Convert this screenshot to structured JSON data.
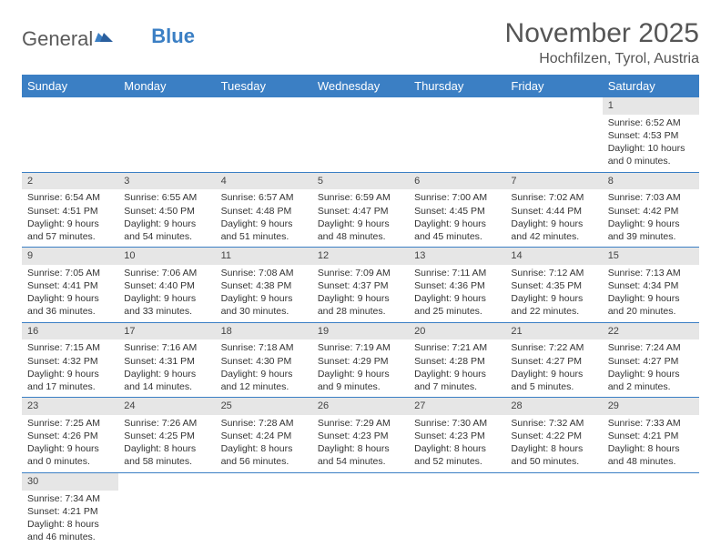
{
  "logo": {
    "text1": "General",
    "text2": "Blue"
  },
  "title": "November 2025",
  "location": "Hochfilzen, Tyrol, Austria",
  "colors": {
    "header_bg": "#3b7fc4",
    "header_text": "#ffffff",
    "daynum_bg": "#e6e6e6",
    "row_border": "#3b7fc4",
    "body_text": "#333333",
    "title_text": "#555555"
  },
  "weekdays": [
    "Sunday",
    "Monday",
    "Tuesday",
    "Wednesday",
    "Thursday",
    "Friday",
    "Saturday"
  ],
  "weeks": [
    [
      {
        "n": "",
        "sunrise": "",
        "sunset": "",
        "daylight": ""
      },
      {
        "n": "",
        "sunrise": "",
        "sunset": "",
        "daylight": ""
      },
      {
        "n": "",
        "sunrise": "",
        "sunset": "",
        "daylight": ""
      },
      {
        "n": "",
        "sunrise": "",
        "sunset": "",
        "daylight": ""
      },
      {
        "n": "",
        "sunrise": "",
        "sunset": "",
        "daylight": ""
      },
      {
        "n": "",
        "sunrise": "",
        "sunset": "",
        "daylight": ""
      },
      {
        "n": "1",
        "sunrise": "Sunrise: 6:52 AM",
        "sunset": "Sunset: 4:53 PM",
        "daylight": "Daylight: 10 hours and 0 minutes."
      }
    ],
    [
      {
        "n": "2",
        "sunrise": "Sunrise: 6:54 AM",
        "sunset": "Sunset: 4:51 PM",
        "daylight": "Daylight: 9 hours and 57 minutes."
      },
      {
        "n": "3",
        "sunrise": "Sunrise: 6:55 AM",
        "sunset": "Sunset: 4:50 PM",
        "daylight": "Daylight: 9 hours and 54 minutes."
      },
      {
        "n": "4",
        "sunrise": "Sunrise: 6:57 AM",
        "sunset": "Sunset: 4:48 PM",
        "daylight": "Daylight: 9 hours and 51 minutes."
      },
      {
        "n": "5",
        "sunrise": "Sunrise: 6:59 AM",
        "sunset": "Sunset: 4:47 PM",
        "daylight": "Daylight: 9 hours and 48 minutes."
      },
      {
        "n": "6",
        "sunrise": "Sunrise: 7:00 AM",
        "sunset": "Sunset: 4:45 PM",
        "daylight": "Daylight: 9 hours and 45 minutes."
      },
      {
        "n": "7",
        "sunrise": "Sunrise: 7:02 AM",
        "sunset": "Sunset: 4:44 PM",
        "daylight": "Daylight: 9 hours and 42 minutes."
      },
      {
        "n": "8",
        "sunrise": "Sunrise: 7:03 AM",
        "sunset": "Sunset: 4:42 PM",
        "daylight": "Daylight: 9 hours and 39 minutes."
      }
    ],
    [
      {
        "n": "9",
        "sunrise": "Sunrise: 7:05 AM",
        "sunset": "Sunset: 4:41 PM",
        "daylight": "Daylight: 9 hours and 36 minutes."
      },
      {
        "n": "10",
        "sunrise": "Sunrise: 7:06 AM",
        "sunset": "Sunset: 4:40 PM",
        "daylight": "Daylight: 9 hours and 33 minutes."
      },
      {
        "n": "11",
        "sunrise": "Sunrise: 7:08 AM",
        "sunset": "Sunset: 4:38 PM",
        "daylight": "Daylight: 9 hours and 30 minutes."
      },
      {
        "n": "12",
        "sunrise": "Sunrise: 7:09 AM",
        "sunset": "Sunset: 4:37 PM",
        "daylight": "Daylight: 9 hours and 28 minutes."
      },
      {
        "n": "13",
        "sunrise": "Sunrise: 7:11 AM",
        "sunset": "Sunset: 4:36 PM",
        "daylight": "Daylight: 9 hours and 25 minutes."
      },
      {
        "n": "14",
        "sunrise": "Sunrise: 7:12 AM",
        "sunset": "Sunset: 4:35 PM",
        "daylight": "Daylight: 9 hours and 22 minutes."
      },
      {
        "n": "15",
        "sunrise": "Sunrise: 7:13 AM",
        "sunset": "Sunset: 4:34 PM",
        "daylight": "Daylight: 9 hours and 20 minutes."
      }
    ],
    [
      {
        "n": "16",
        "sunrise": "Sunrise: 7:15 AM",
        "sunset": "Sunset: 4:32 PM",
        "daylight": "Daylight: 9 hours and 17 minutes."
      },
      {
        "n": "17",
        "sunrise": "Sunrise: 7:16 AM",
        "sunset": "Sunset: 4:31 PM",
        "daylight": "Daylight: 9 hours and 14 minutes."
      },
      {
        "n": "18",
        "sunrise": "Sunrise: 7:18 AM",
        "sunset": "Sunset: 4:30 PM",
        "daylight": "Daylight: 9 hours and 12 minutes."
      },
      {
        "n": "19",
        "sunrise": "Sunrise: 7:19 AM",
        "sunset": "Sunset: 4:29 PM",
        "daylight": "Daylight: 9 hours and 9 minutes."
      },
      {
        "n": "20",
        "sunrise": "Sunrise: 7:21 AM",
        "sunset": "Sunset: 4:28 PM",
        "daylight": "Daylight: 9 hours and 7 minutes."
      },
      {
        "n": "21",
        "sunrise": "Sunrise: 7:22 AM",
        "sunset": "Sunset: 4:27 PM",
        "daylight": "Daylight: 9 hours and 5 minutes."
      },
      {
        "n": "22",
        "sunrise": "Sunrise: 7:24 AM",
        "sunset": "Sunset: 4:27 PM",
        "daylight": "Daylight: 9 hours and 2 minutes."
      }
    ],
    [
      {
        "n": "23",
        "sunrise": "Sunrise: 7:25 AM",
        "sunset": "Sunset: 4:26 PM",
        "daylight": "Daylight: 9 hours and 0 minutes."
      },
      {
        "n": "24",
        "sunrise": "Sunrise: 7:26 AM",
        "sunset": "Sunset: 4:25 PM",
        "daylight": "Daylight: 8 hours and 58 minutes."
      },
      {
        "n": "25",
        "sunrise": "Sunrise: 7:28 AM",
        "sunset": "Sunset: 4:24 PM",
        "daylight": "Daylight: 8 hours and 56 minutes."
      },
      {
        "n": "26",
        "sunrise": "Sunrise: 7:29 AM",
        "sunset": "Sunset: 4:23 PM",
        "daylight": "Daylight: 8 hours and 54 minutes."
      },
      {
        "n": "27",
        "sunrise": "Sunrise: 7:30 AM",
        "sunset": "Sunset: 4:23 PM",
        "daylight": "Daylight: 8 hours and 52 minutes."
      },
      {
        "n": "28",
        "sunrise": "Sunrise: 7:32 AM",
        "sunset": "Sunset: 4:22 PM",
        "daylight": "Daylight: 8 hours and 50 minutes."
      },
      {
        "n": "29",
        "sunrise": "Sunrise: 7:33 AM",
        "sunset": "Sunset: 4:21 PM",
        "daylight": "Daylight: 8 hours and 48 minutes."
      }
    ],
    [
      {
        "n": "30",
        "sunrise": "Sunrise: 7:34 AM",
        "sunset": "Sunset: 4:21 PM",
        "daylight": "Daylight: 8 hours and 46 minutes."
      },
      {
        "n": "",
        "sunrise": "",
        "sunset": "",
        "daylight": ""
      },
      {
        "n": "",
        "sunrise": "",
        "sunset": "",
        "daylight": ""
      },
      {
        "n": "",
        "sunrise": "",
        "sunset": "",
        "daylight": ""
      },
      {
        "n": "",
        "sunrise": "",
        "sunset": "",
        "daylight": ""
      },
      {
        "n": "",
        "sunrise": "",
        "sunset": "",
        "daylight": ""
      },
      {
        "n": "",
        "sunrise": "",
        "sunset": "",
        "daylight": ""
      }
    ]
  ]
}
